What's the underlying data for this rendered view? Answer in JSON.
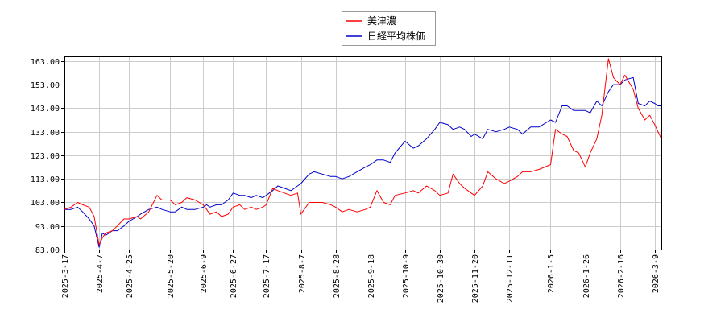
{
  "chart_data": {
    "type": "line",
    "title": "",
    "xlabel": "",
    "ylabel": "",
    "ylim": [
      83,
      165
    ],
    "yticks": [
      "83.00",
      "93.00",
      "103.00",
      "113.00",
      "123.00",
      "133.00",
      "143.00",
      "153.00",
      "163.00"
    ],
    "x_range": [
      "2025-03-17",
      "2026-03-13"
    ],
    "xticks": [
      "2025-3-17",
      "2025-4-7",
      "2025-4-25",
      "2025-5-20",
      "2025-6-9",
      "2025-6-27",
      "2025-7-17",
      "2025-8-7",
      "2025-8-28",
      "2025-9-18",
      "2025-10-9",
      "2025-10-30",
      "2025-11-20",
      "2025-12-11",
      "2026-1-5",
      "2026-1-26",
      "2026-2-16",
      "2026-3-9"
    ],
    "grid": true,
    "legend_position": "top-center",
    "series": [
      {
        "name": "美津濃",
        "color": "#ff0000",
        "points": [
          [
            "2025-03-17",
            100
          ],
          [
            "2025-03-21",
            101
          ],
          [
            "2025-03-25",
            103
          ],
          [
            "2025-03-28",
            102
          ],
          [
            "2025-04-01",
            101
          ],
          [
            "2025-04-04",
            97
          ],
          [
            "2025-04-07",
            85
          ],
          [
            "2025-04-09",
            88
          ],
          [
            "2025-04-11",
            90
          ],
          [
            "2025-04-15",
            91
          ],
          [
            "2025-04-18",
            93
          ],
          [
            "2025-04-22",
            96
          ],
          [
            "2025-04-25",
            96
          ],
          [
            "2025-04-30",
            97
          ],
          [
            "2025-05-02",
            96
          ],
          [
            "2025-05-07",
            99
          ],
          [
            "2025-05-12",
            106
          ],
          [
            "2025-05-15",
            104
          ],
          [
            "2025-05-20",
            104
          ],
          [
            "2025-05-23",
            102
          ],
          [
            "2025-05-27",
            103
          ],
          [
            "2025-05-30",
            105
          ],
          [
            "2025-06-04",
            104
          ],
          [
            "2025-06-09",
            102
          ],
          [
            "2025-06-11",
            100
          ],
          [
            "2025-06-13",
            98
          ],
          [
            "2025-06-17",
            99
          ],
          [
            "2025-06-20",
            97
          ],
          [
            "2025-06-24",
            98
          ],
          [
            "2025-06-27",
            101
          ],
          [
            "2025-07-01",
            102
          ],
          [
            "2025-07-04",
            100
          ],
          [
            "2025-07-08",
            101
          ],
          [
            "2025-07-11",
            100
          ],
          [
            "2025-07-15",
            101
          ],
          [
            "2025-07-17",
            102
          ],
          [
            "2025-07-21",
            109
          ],
          [
            "2025-07-24",
            108
          ],
          [
            "2025-07-28",
            107
          ],
          [
            "2025-08-01",
            106
          ],
          [
            "2025-08-05",
            107
          ],
          [
            "2025-08-07",
            98
          ],
          [
            "2025-08-12",
            103
          ],
          [
            "2025-08-15",
            103
          ],
          [
            "2025-08-20",
            103
          ],
          [
            "2025-08-25",
            102
          ],
          [
            "2025-08-28",
            101
          ],
          [
            "2025-09-01",
            99
          ],
          [
            "2025-09-05",
            100
          ],
          [
            "2025-09-10",
            99
          ],
          [
            "2025-09-15",
            100
          ],
          [
            "2025-09-18",
            101
          ],
          [
            "2025-09-22",
            108
          ],
          [
            "2025-09-26",
            103
          ],
          [
            "2025-09-30",
            102
          ],
          [
            "2025-10-03",
            106
          ],
          [
            "2025-10-09",
            107
          ],
          [
            "2025-10-14",
            108
          ],
          [
            "2025-10-17",
            107
          ],
          [
            "2025-10-22",
            110
          ],
          [
            "2025-10-27",
            108
          ],
          [
            "2025-10-30",
            106
          ],
          [
            "2025-11-04",
            107
          ],
          [
            "2025-11-07",
            115
          ],
          [
            "2025-11-11",
            111
          ],
          [
            "2025-11-14",
            109
          ],
          [
            "2025-11-18",
            107
          ],
          [
            "2025-11-20",
            106
          ],
          [
            "2025-11-25",
            110
          ],
          [
            "2025-11-28",
            116
          ],
          [
            "2025-12-03",
            113
          ],
          [
            "2025-12-08",
            111
          ],
          [
            "2025-12-11",
            112
          ],
          [
            "2025-12-16",
            114
          ],
          [
            "2025-12-19",
            116
          ],
          [
            "2025-12-24",
            116
          ],
          [
            "2025-12-29",
            117
          ],
          [
            "2026-01-05",
            119
          ],
          [
            "2026-01-08",
            134
          ],
          [
            "2026-01-12",
            132
          ],
          [
            "2026-01-15",
            131
          ],
          [
            "2026-01-19",
            125
          ],
          [
            "2026-01-22",
            124
          ],
          [
            "2026-01-26",
            118
          ],
          [
            "2026-01-29",
            124
          ],
          [
            "2026-02-02",
            130
          ],
          [
            "2026-02-05",
            140
          ],
          [
            "2026-02-09",
            164
          ],
          [
            "2026-02-12",
            156
          ],
          [
            "2026-02-16",
            153
          ],
          [
            "2026-02-19",
            157
          ],
          [
            "2026-02-24",
            151
          ],
          [
            "2026-02-27",
            143
          ],
          [
            "2026-03-03",
            138
          ],
          [
            "2026-03-06",
            140
          ],
          [
            "2026-03-09",
            136
          ],
          [
            "2026-03-11",
            133
          ],
          [
            "2026-03-13",
            130
          ]
        ]
      },
      {
        "name": "日経平均株価",
        "color": "#0000cc",
        "points": [
          [
            "2025-03-17",
            100
          ],
          [
            "2025-03-21",
            100
          ],
          [
            "2025-03-25",
            101
          ],
          [
            "2025-03-28",
            99
          ],
          [
            "2025-04-01",
            96
          ],
          [
            "2025-04-04",
            93
          ],
          [
            "2025-04-07",
            84
          ],
          [
            "2025-04-09",
            90
          ],
          [
            "2025-04-11",
            89
          ],
          [
            "2025-04-15",
            91
          ],
          [
            "2025-04-18",
            91
          ],
          [
            "2025-04-22",
            93
          ],
          [
            "2025-04-25",
            95
          ],
          [
            "2025-04-30",
            97
          ],
          [
            "2025-05-02",
            98
          ],
          [
            "2025-05-07",
            100
          ],
          [
            "2025-05-12",
            101
          ],
          [
            "2025-05-15",
            100
          ],
          [
            "2025-05-20",
            99
          ],
          [
            "2025-05-23",
            99
          ],
          [
            "2025-05-27",
            101
          ],
          [
            "2025-05-30",
            100
          ],
          [
            "2025-06-04",
            100
          ],
          [
            "2025-06-09",
            101
          ],
          [
            "2025-06-11",
            102
          ],
          [
            "2025-06-13",
            101
          ],
          [
            "2025-06-17",
            102
          ],
          [
            "2025-06-20",
            102
          ],
          [
            "2025-06-24",
            104
          ],
          [
            "2025-06-27",
            107
          ],
          [
            "2025-07-01",
            106
          ],
          [
            "2025-07-04",
            106
          ],
          [
            "2025-07-08",
            105
          ],
          [
            "2025-07-11",
            106
          ],
          [
            "2025-07-15",
            105
          ],
          [
            "2025-07-17",
            106
          ],
          [
            "2025-07-21",
            108
          ],
          [
            "2025-07-24",
            110
          ],
          [
            "2025-07-28",
            109
          ],
          [
            "2025-08-01",
            108
          ],
          [
            "2025-08-05",
            110
          ],
          [
            "2025-08-07",
            111
          ],
          [
            "2025-08-12",
            115
          ],
          [
            "2025-08-15",
            116
          ],
          [
            "2025-08-20",
            115
          ],
          [
            "2025-08-25",
            114
          ],
          [
            "2025-08-28",
            114
          ],
          [
            "2025-09-01",
            113
          ],
          [
            "2025-09-05",
            114
          ],
          [
            "2025-09-10",
            116
          ],
          [
            "2025-09-15",
            118
          ],
          [
            "2025-09-18",
            119
          ],
          [
            "2025-09-22",
            121
          ],
          [
            "2025-09-26",
            121
          ],
          [
            "2025-09-30",
            120
          ],
          [
            "2025-10-03",
            124
          ],
          [
            "2025-10-09",
            129
          ],
          [
            "2025-10-14",
            126
          ],
          [
            "2025-10-17",
            127
          ],
          [
            "2025-10-22",
            130
          ],
          [
            "2025-10-27",
            134
          ],
          [
            "2025-10-30",
            137
          ],
          [
            "2025-11-04",
            136
          ],
          [
            "2025-11-07",
            134
          ],
          [
            "2025-11-11",
            135
          ],
          [
            "2025-11-14",
            134
          ],
          [
            "2025-11-18",
            131
          ],
          [
            "2025-11-20",
            132
          ],
          [
            "2025-11-25",
            130
          ],
          [
            "2025-11-28",
            134
          ],
          [
            "2025-12-03",
            133
          ],
          [
            "2025-12-08",
            134
          ],
          [
            "2025-12-11",
            135
          ],
          [
            "2025-12-16",
            134
          ],
          [
            "2025-12-19",
            132
          ],
          [
            "2025-12-24",
            135
          ],
          [
            "2025-12-29",
            135
          ],
          [
            "2026-01-05",
            138
          ],
          [
            "2026-01-08",
            137
          ],
          [
            "2026-01-12",
            144
          ],
          [
            "2026-01-15",
            144
          ],
          [
            "2026-01-19",
            142
          ],
          [
            "2026-01-22",
            142
          ],
          [
            "2026-01-26",
            142
          ],
          [
            "2026-01-29",
            141
          ],
          [
            "2026-02-02",
            146
          ],
          [
            "2026-02-05",
            144
          ],
          [
            "2026-02-09",
            150
          ],
          [
            "2026-02-12",
            153
          ],
          [
            "2026-02-16",
            153
          ],
          [
            "2026-02-19",
            155
          ],
          [
            "2026-02-24",
            156
          ],
          [
            "2026-02-27",
            145
          ],
          [
            "2026-03-03",
            144
          ],
          [
            "2026-03-06",
            146
          ],
          [
            "2026-03-09",
            145
          ],
          [
            "2026-03-11",
            144
          ],
          [
            "2026-03-13",
            144
          ]
        ]
      }
    ]
  }
}
